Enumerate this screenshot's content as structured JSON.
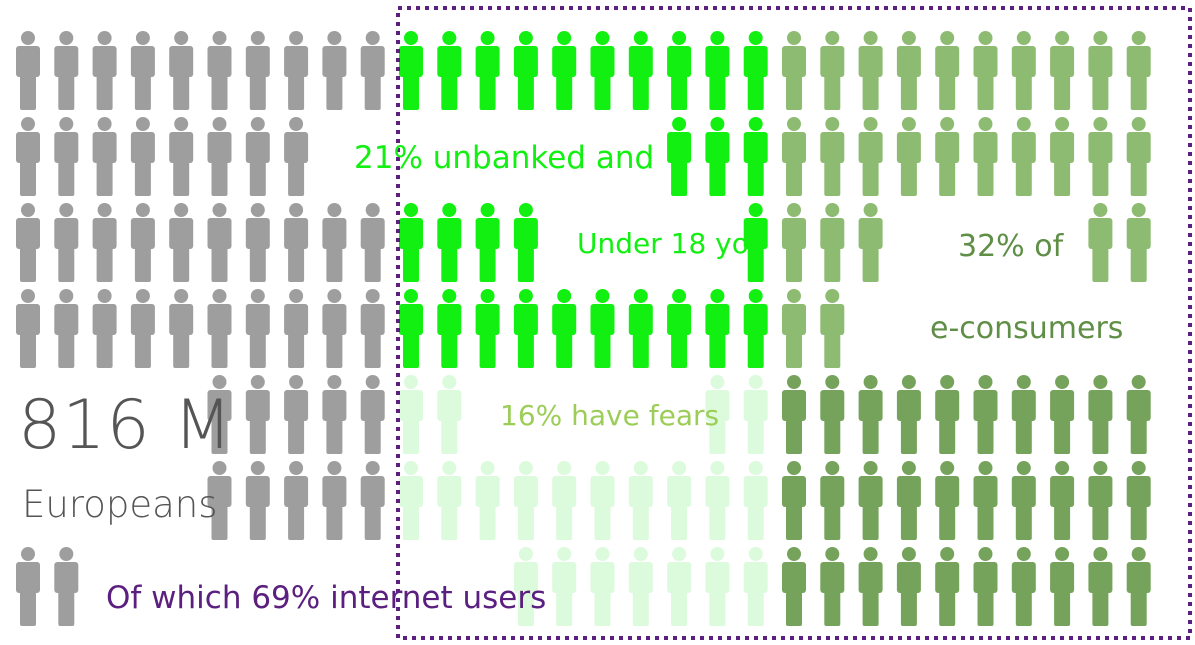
{
  "colors": {
    "europeans": "#9e9e9e",
    "unbanked": "#12f012",
    "fears": "#dcfadc",
    "e_consumers_light": "#8ebb72",
    "e_consumers_dark": "#75a35b",
    "internet_users": "#5b1f7f",
    "unbanked_text": "#12f012",
    "fears_text": "#9ccd58",
    "e_consumers_text": "#5f8f46",
    "frame": "#5b1f7f"
  },
  "labels": {
    "total": "816 M",
    "europeans": "Europeans",
    "internet_users": "Of which 69% internet users",
    "unbanked_and": "21% unbanked and",
    "under_18": "Under 18 yo",
    "fears": "16% have fears",
    "pct_of": "32% of",
    "e_consumers": "e-consumers"
  },
  "icon": "person-icon"
}
